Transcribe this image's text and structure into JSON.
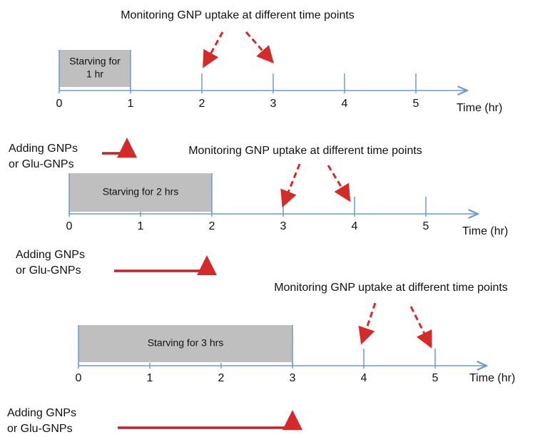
{
  "panels": [
    {
      "monitoring_label": "Monitoring GNP uptake at different time points",
      "starving_label": [
        "Starving for",
        "1 hr"
      ],
      "ticks": [
        0,
        1,
        2,
        3,
        4,
        5
      ],
      "axis_label": "Time (hr)",
      "adding_label": [
        "Adding GNPs",
        "or Glu-GNPs"
      ]
    },
    {
      "monitoring_label": "Monitoring GNP uptake at different time points",
      "starving_label": [
        "Starving for 2 hrs"
      ],
      "ticks": [
        0,
        1,
        2,
        3,
        4,
        5
      ],
      "axis_label": "Time (hr)",
      "adding_label": [
        "Adding GNPs",
        "or Glu-GNPs"
      ]
    },
    {
      "monitoring_label": "Monitoring GNP uptake at different time points",
      "starving_label": [
        "Starving for 3 hrs"
      ],
      "ticks": [
        0,
        1,
        2,
        3,
        4,
        5
      ],
      "axis_label": "Time (hr)",
      "adding_label": [
        "Adding GNPs",
        "or Glu-GNPs"
      ]
    }
  ]
}
